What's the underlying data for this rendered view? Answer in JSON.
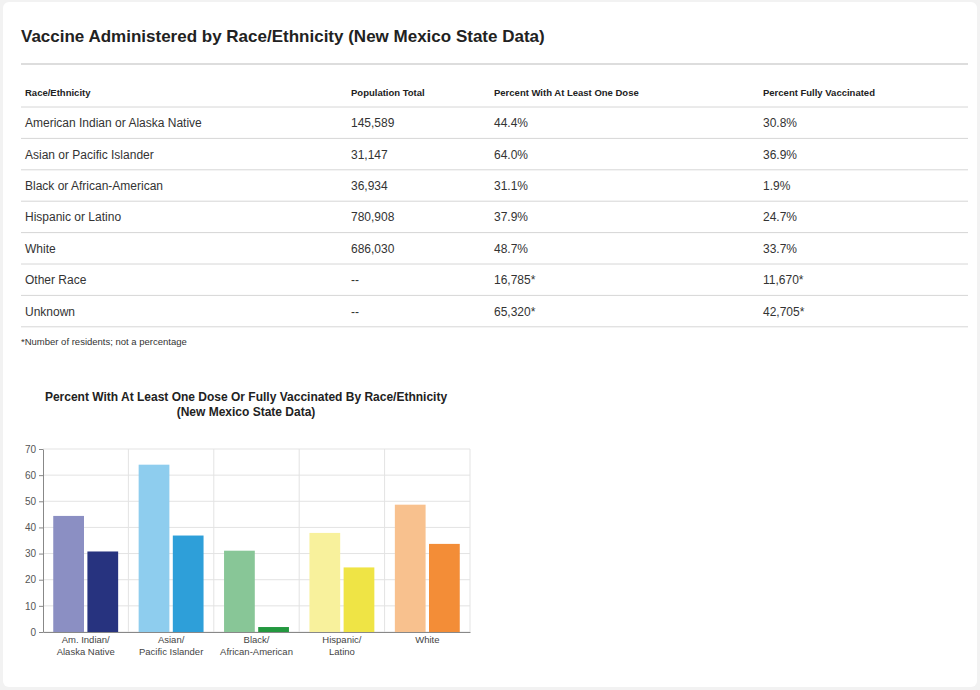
{
  "header": {
    "title": "Vaccine Administered by Race/Ethnicity (New Mexico State Data)"
  },
  "table": {
    "columns": [
      "Race/Ethnicity",
      "Population Total",
      "Percent With At Least One Dose",
      "Percent Fully Vaccinated"
    ],
    "rows": [
      [
        "American Indian or Alaska Native",
        "145,589",
        "44.4%",
        "30.8%"
      ],
      [
        "Asian or Pacific Islander",
        "31,147",
        "64.0%",
        "36.9%"
      ],
      [
        "Black or African-American",
        "36,934",
        "31.1%",
        "1.9%"
      ],
      [
        "Hispanic or Latino",
        "780,908",
        "37.9%",
        "24.7%"
      ],
      [
        "White",
        "686,030",
        "48.7%",
        "33.7%"
      ],
      [
        "Other Race",
        "--",
        "16,785*",
        "11,670*"
      ],
      [
        "Unknown",
        "--",
        "65,320*",
        "42,705*"
      ]
    ],
    "footnote": "*Number of residents; not a percentage"
  },
  "chart_data": {
    "type": "bar",
    "title": "Percent With At Least One Dose Or Fully Vaccinated By Race/Ethnicity (New Mexico State Data)",
    "categories": [
      "Am. Indian/Alaska Native",
      "Asian/Pacific Islander",
      "Black/African-American",
      "Hispanic/Latino",
      "White"
    ],
    "series": [
      {
        "values": [
          44.4,
          64.0,
          31.1,
          37.9,
          48.7
        ],
        "colors": [
          "#8b8fc3",
          "#8ecdee",
          "#88c697",
          "#f8f19c",
          "#f8c18e"
        ]
      },
      {
        "values": [
          30.8,
          36.9,
          1.9,
          24.7,
          33.7
        ],
        "colors": [
          "#27337f",
          "#2e9fd9",
          "#23983f",
          "#efe445",
          "#f38d37"
        ]
      }
    ],
    "ylim": [
      0,
      70
    ],
    "yticks": [
      0,
      10,
      20,
      30,
      40,
      50,
      60,
      70
    ],
    "grid": true
  }
}
